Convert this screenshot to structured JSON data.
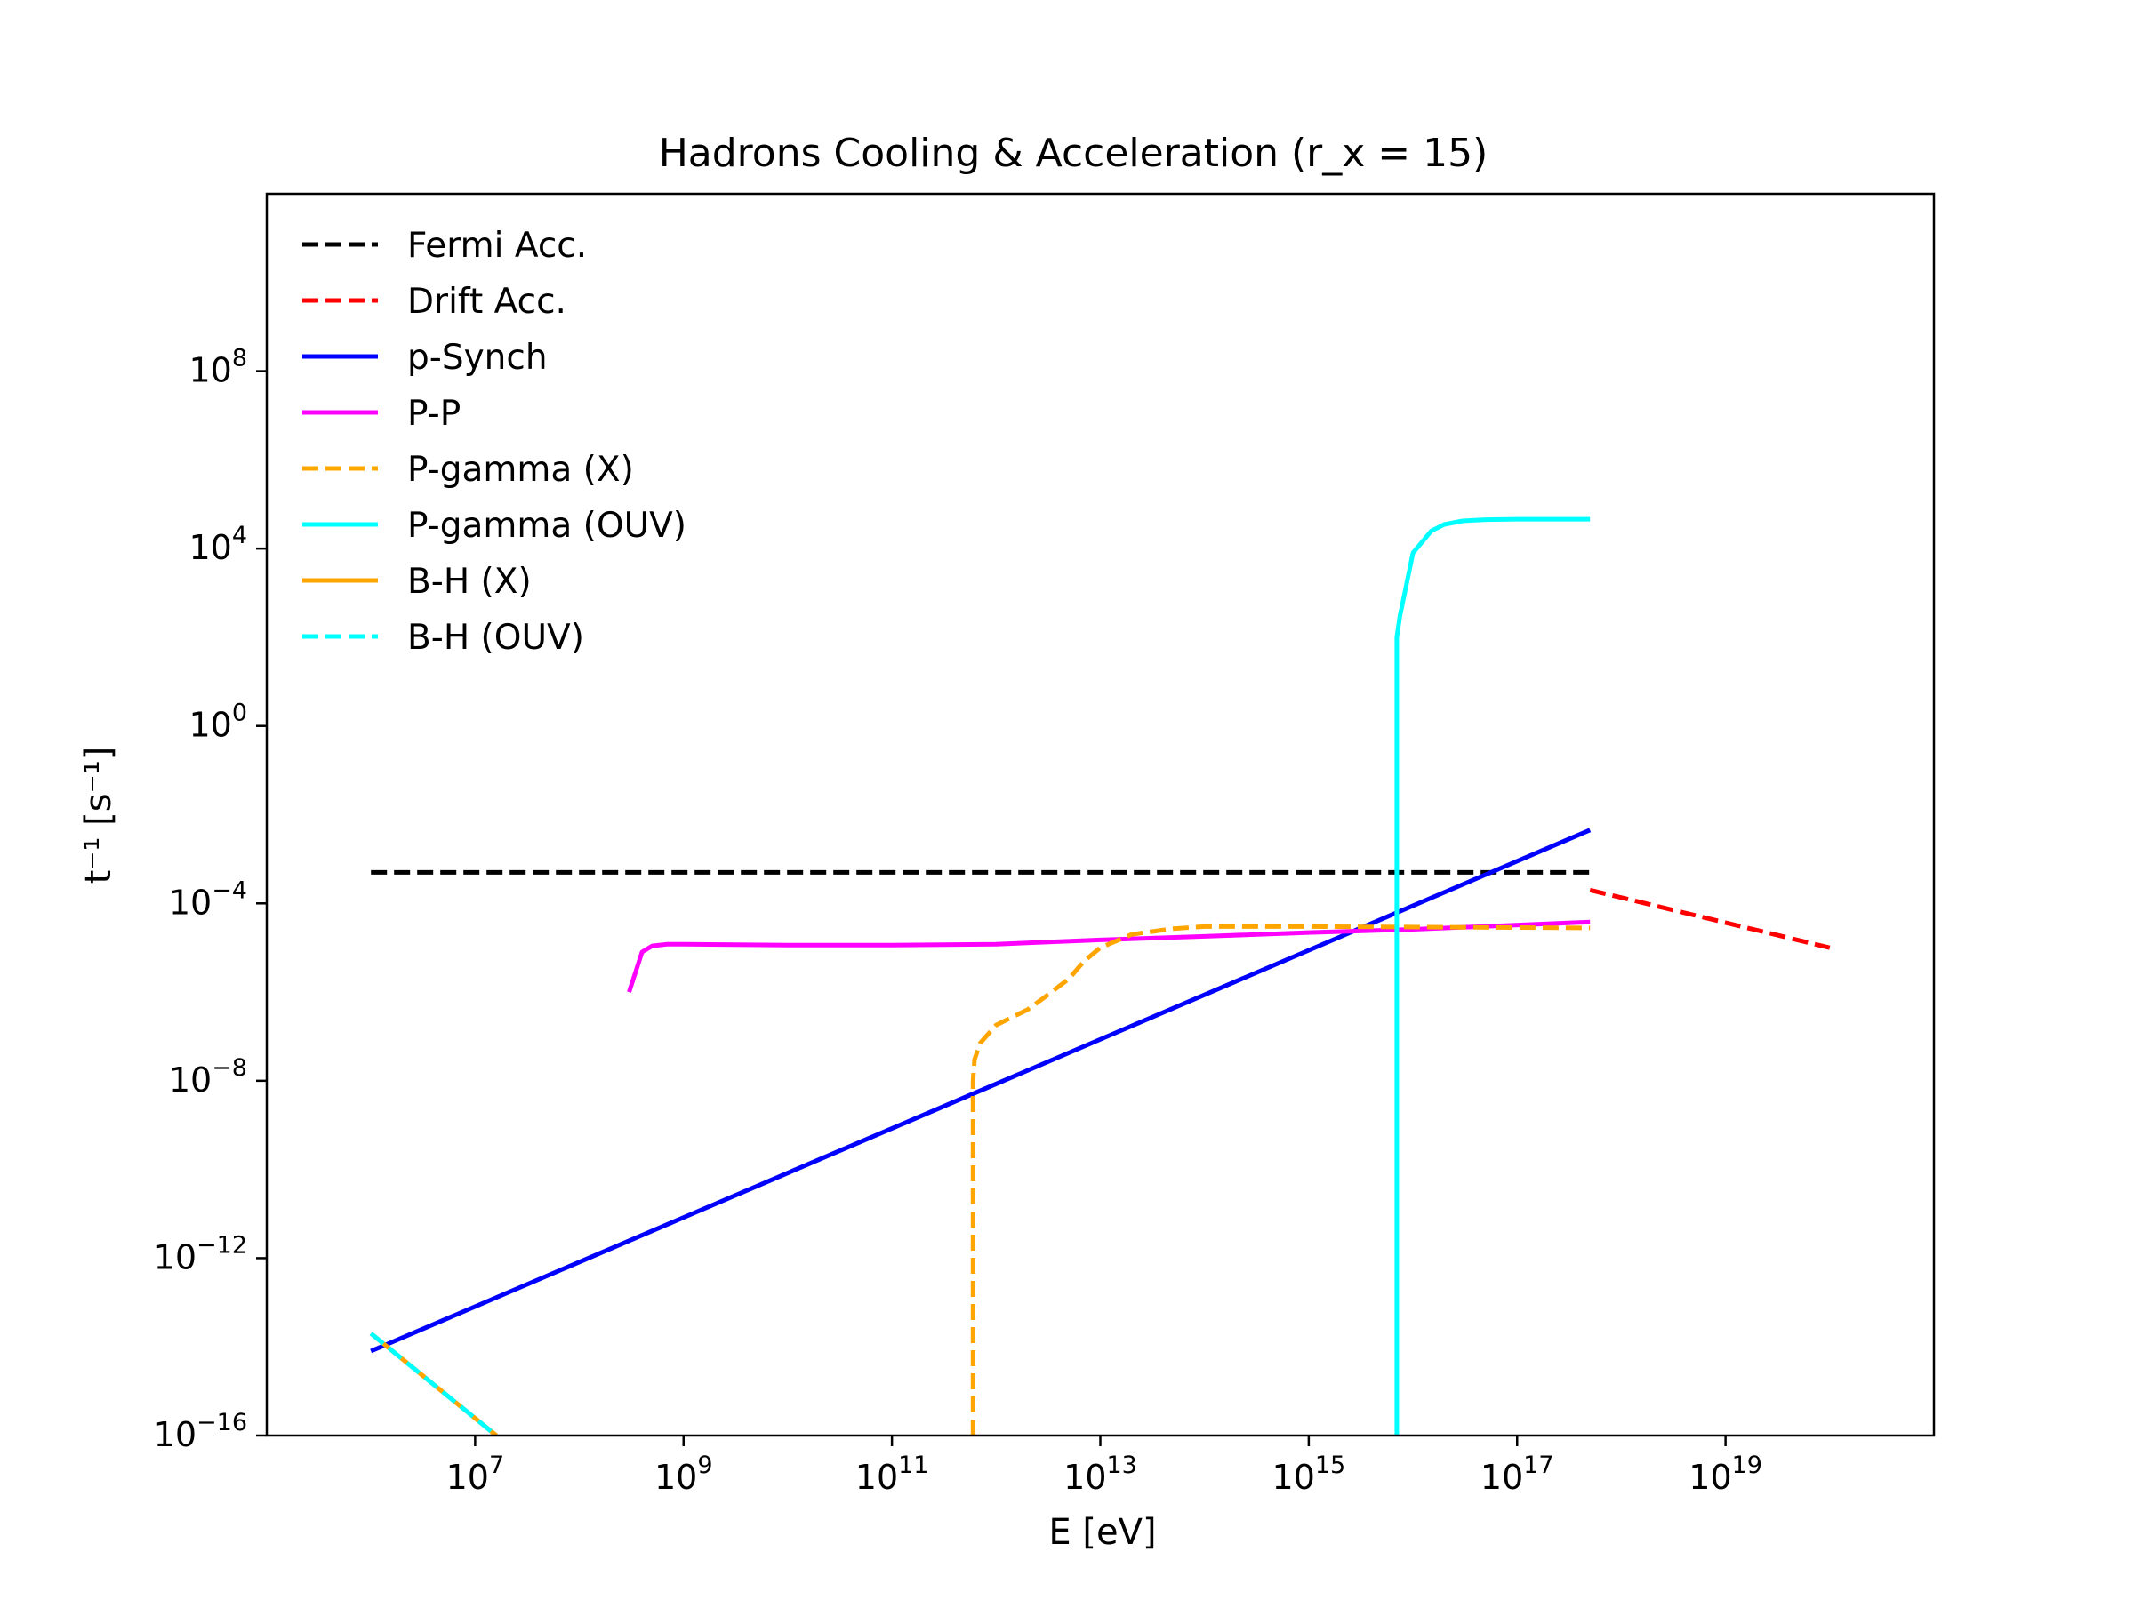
{
  "chart_data": {
    "type": "line",
    "title": "Hadrons Cooling & Acceleration (r_x = 15)",
    "xlabel": "E [eV]",
    "ylabel": "t⁻¹ [s⁻¹]",
    "xscale": "log",
    "yscale": "log",
    "xlim": [
      100000.0,
      1e+21
    ],
    "ylim": [
      1e-16,
      1000000000000.0
    ],
    "grid": false,
    "legend_position": "top-left",
    "xticks": [
      {
        "value": 10000000.0,
        "base": "10",
        "exp": "7"
      },
      {
        "value": 1000000000.0,
        "base": "10",
        "exp": "9"
      },
      {
        "value": 100000000000.0,
        "base": "10",
        "exp": "11"
      },
      {
        "value": 10000000000000.0,
        "base": "10",
        "exp": "13"
      },
      {
        "value": 1000000000000000.0,
        "base": "10",
        "exp": "15"
      },
      {
        "value": 1e+17,
        "base": "10",
        "exp": "17"
      },
      {
        "value": 1e+19,
        "base": "10",
        "exp": "19"
      }
    ],
    "yticks": [
      {
        "value": 1e-16,
        "base": "10",
        "exp": "−16"
      },
      {
        "value": 1e-12,
        "base": "10",
        "exp": "−12"
      },
      {
        "value": 1e-08,
        "base": "10",
        "exp": "−8"
      },
      {
        "value": 0.0001,
        "base": "10",
        "exp": "−4"
      },
      {
        "value": 1.0,
        "base": "10",
        "exp": "0"
      },
      {
        "value": 10000.0,
        "base": "10",
        "exp": "4"
      },
      {
        "value": 100000000.0,
        "base": "10",
        "exp": "8"
      }
    ],
    "series": [
      {
        "name": "Fermi Acc.",
        "color": "#000000",
        "dash": true,
        "x": [
          1000000.0,
          5e+17
        ],
        "y": [
          0.0005,
          0.0005
        ]
      },
      {
        "name": "Drift Acc.",
        "color": "#ff0000",
        "dash": true,
        "x": [
          5e+17,
          1e+20
        ],
        "y": [
          0.0002,
          1e-05
        ]
      },
      {
        "name": "p-Synch",
        "color": "#0000ff",
        "dash": false,
        "x": [
          1000000.0,
          5e+17
        ],
        "y": [
          8e-15,
          0.0045
        ]
      },
      {
        "name": "P-P",
        "color": "#ff00ff",
        "dash": false,
        "x": [
          300000000.0,
          400000000.0,
          500000000.0,
          700000000.0,
          1000000000.0,
          10000000000.0,
          100000000000.0,
          1000000000000.0,
          10000000000000.0,
          100000000000000.0,
          1000000000000000.0,
          1e+16,
          5e+17
        ],
        "y": [
          1e-06,
          8e-06,
          1.1e-05,
          1.2e-05,
          1.2e-05,
          1.15e-05,
          1.15e-05,
          1.2e-05,
          1.5e-05,
          1.8e-05,
          2.2e-05,
          2.6e-05,
          3.8e-05
        ]
      },
      {
        "name": "P-gamma (X)",
        "color": "#ffa500",
        "dash": true,
        "x": [
          600000000000.0,
          600000000000.0,
          620000000000.0,
          700000000000.0,
          1000000000000.0,
          2000000000000.0,
          3000000000000.0,
          5000000000000.0,
          7000000000000.0,
          10000000000000.0,
          20000000000000.0,
          50000000000000.0,
          100000000000000.0,
          1000000000000000.0,
          5e+17
        ],
        "y": [
          1e-16,
          1e-08,
          3e-08,
          7e-08,
          1.8e-07,
          4e-07,
          8e-07,
          2e-06,
          5e-06,
          1e-05,
          2e-05,
          2.7e-05,
          3e-05,
          3e-05,
          2.8e-05
        ]
      },
      {
        "name": "P-gamma (OUV)",
        "color": "#00ffff",
        "dash": false,
        "x": [
          7000000000000000.0,
          7000000000000000.0,
          7500000000000000.0,
          1e+16,
          1.5e+16,
          2e+16,
          3e+16,
          5e+16,
          1e+17,
          5e+17
        ],
        "y": [
          1e-16,
          100,
          300,
          8000,
          25000,
          35000,
          42000,
          45000,
          46000,
          46000
        ]
      },
      {
        "name": "B-H (X)",
        "color": "#ffa500",
        "dash": false,
        "x": [
          1000000.0,
          16000000.0
        ],
        "y": [
          2e-14,
          1e-16
        ]
      },
      {
        "name": "B-H (OUV)",
        "color": "#00ffff",
        "dash": true,
        "x": [
          1000000.0,
          16000000.0
        ],
        "y": [
          2e-14,
          1e-16
        ]
      }
    ]
  }
}
